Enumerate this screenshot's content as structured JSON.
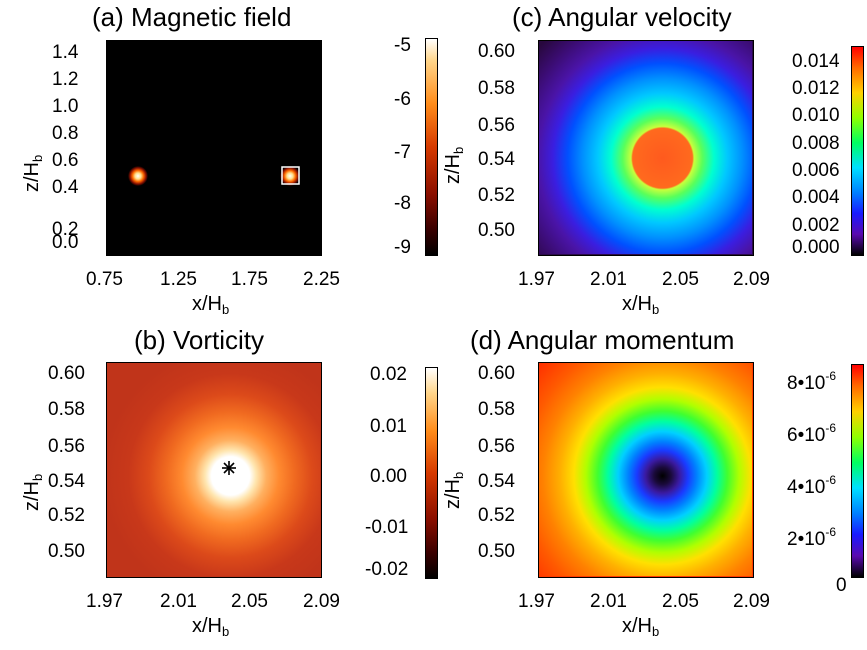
{
  "chart_data": [
    {
      "type": "heatmap",
      "title": "(a) Magnetic field",
      "xlabel": "x/H",
      "xlabel_sub": "b",
      "ylabel": "z/H",
      "ylabel_sub": "b",
      "xlim": [
        0.75,
        2.25
      ],
      "ylim": [
        0.0,
        1.5
      ],
      "xticks": [
        "0.75",
        "1.25",
        "1.75",
        "2.25"
      ],
      "yticks": [
        "0.0",
        "0.2",
        "0.4",
        "0.6",
        "0.8",
        "1.0",
        "1.2",
        "1.4"
      ],
      "colorbar": {
        "min": -9,
        "max": -5,
        "ticks": [
          "-5",
          "-6",
          "-7",
          "-8",
          "-9"
        ],
        "colormap": "black-red-yellow-white"
      },
      "features": [
        {
          "kind": "bright spot",
          "x": 0.96,
          "y": 0.56
        },
        {
          "kind": "bright spot (boxed)",
          "x": 2.03,
          "y": 0.55
        }
      ],
      "background_value": -9
    },
    {
      "type": "heatmap",
      "title": "(c) Angular velocity",
      "xlabel": "x/H",
      "xlabel_sub": "b",
      "ylabel": "z/H",
      "ylabel_sub": "b",
      "xlim": [
        1.97,
        2.09
      ],
      "ylim": [
        0.49,
        0.605
      ],
      "xticks": [
        "1.97",
        "2.01",
        "2.05",
        "2.09"
      ],
      "yticks": [
        "0.60",
        "0.58",
        "0.56",
        "0.54",
        "0.52",
        "0.50"
      ],
      "colorbar": {
        "min": 0.0,
        "max": 0.015,
        "ticks": [
          "0.014",
          "0.012",
          "0.010",
          "0.008",
          "0.006",
          "0.004",
          "0.002",
          "0.000"
        ],
        "colormap": "rainbow"
      },
      "center": {
        "x": 2.028,
        "y": 0.548
      },
      "peak_value": 0.013,
      "edge_value": 0.0
    },
    {
      "type": "heatmap",
      "title": "(b) Vorticity",
      "xlabel": "x/H",
      "xlabel_sub": "b",
      "ylabel": "z/H",
      "ylabel_sub": "b",
      "xlim": [
        1.97,
        2.09
      ],
      "ylim": [
        0.49,
        0.605
      ],
      "xticks": [
        "1.97",
        "2.01",
        "2.05",
        "2.09"
      ],
      "yticks": [
        "0.60",
        "0.58",
        "0.56",
        "0.54",
        "0.52",
        "0.50"
      ],
      "colorbar": {
        "min": -0.02,
        "max": 0.02,
        "ticks": [
          "0.02",
          "0.01",
          "0.00",
          "-0.01",
          "-0.02"
        ],
        "colormap": "black-red-yellow-white"
      },
      "center": {
        "x": 2.028,
        "y": 0.547
      },
      "marker": "*",
      "peak_value": 0.02,
      "edge_value": 0.0
    },
    {
      "type": "heatmap",
      "title": "(d) Angular momentum",
      "xlabel": "x/H",
      "xlabel_sub": "b",
      "ylabel": "z/H",
      "ylabel_sub": "b",
      "xlim": [
        1.97,
        2.09
      ],
      "ylim": [
        0.49,
        0.605
      ],
      "xticks": [
        "1.97",
        "2.01",
        "2.05",
        "2.09"
      ],
      "yticks": [
        "0.60",
        "0.58",
        "0.56",
        "0.54",
        "0.52",
        "0.50"
      ],
      "colorbar": {
        "min": 0,
        "max": 8.5e-06,
        "ticks": [
          "8•10",
          "6•10",
          "4•10",
          "2•10",
          "0"
        ],
        "tick_exponent": "-6",
        "colormap": "rainbow"
      },
      "center": {
        "x": 2.028,
        "y": 0.545
      },
      "center_value": 0,
      "edge_value": 8.5e-06
    }
  ]
}
